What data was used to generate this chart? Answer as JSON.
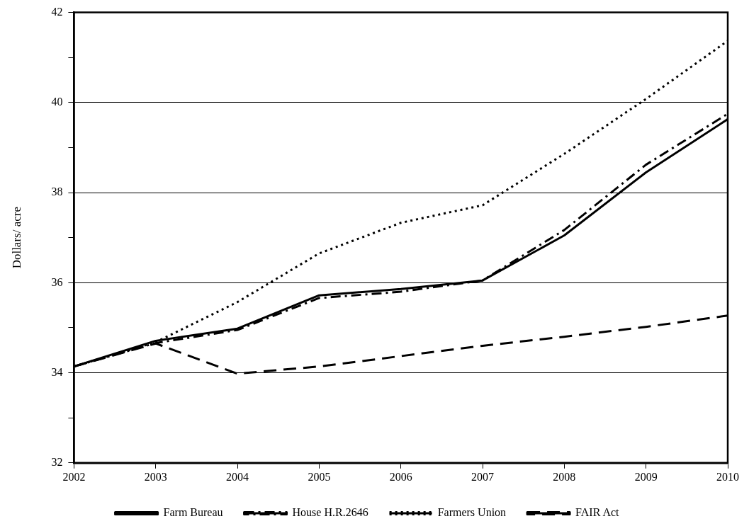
{
  "chart_data": {
    "type": "line",
    "ylabel": "Dollars/ acre",
    "categories": [
      "2002",
      "2003",
      "2004",
      "2005",
      "2006",
      "2007",
      "2008",
      "2009",
      "2010"
    ],
    "series": [
      {
        "name": "Farm Bureau",
        "color": "#000000",
        "line_style": "solid",
        "values": [
          34.14,
          34.71,
          34.98,
          35.72,
          35.86,
          36.05,
          37.05,
          38.45,
          39.63
        ]
      },
      {
        "name": "House H.R.2646",
        "color": "#000000",
        "line_style": "dashdot",
        "values": [
          34.14,
          34.66,
          34.95,
          35.66,
          35.8,
          36.05,
          37.17,
          38.62,
          39.75
        ]
      },
      {
        "name": "Farmers Union",
        "color": "#000000",
        "line_style": "dotted",
        "values": [
          34.14,
          34.68,
          35.57,
          36.65,
          37.33,
          37.72,
          38.86,
          40.08,
          41.37
        ]
      },
      {
        "name": "FAIR Act",
        "color": "#000000",
        "line_style": "dashed",
        "values": [
          34.14,
          34.65,
          33.98,
          34.14,
          34.37,
          34.6,
          34.8,
          35.02,
          35.27
        ]
      }
    ],
    "ylim": [
      32,
      42
    ],
    "yticks": [
      32,
      {
        "value": 33,
        "label": null
      },
      34,
      {
        "value": 35,
        "label": null
      },
      36,
      {
        "value": 37,
        "label": null
      },
      38,
      {
        "value": 39,
        "label": null
      },
      40,
      {
        "value": 41,
        "label": null
      },
      42
    ],
    "grid": "y",
    "legend": "bottom",
    "marker": "none"
  }
}
